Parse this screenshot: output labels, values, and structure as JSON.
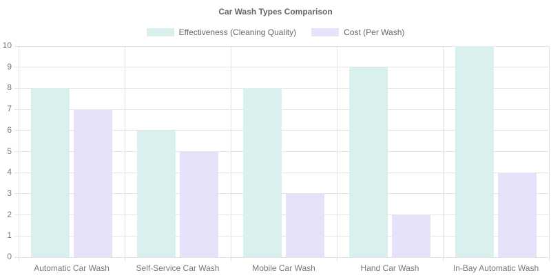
{
  "chart_data": {
    "type": "bar",
    "title": "Car Wash Types Comparison",
    "categories": [
      "Automatic Car Wash",
      "Self-Service Car Wash",
      "Mobile Car Wash",
      "Hand Car Wash",
      "In-Bay Automatic Wash"
    ],
    "series": [
      {
        "name": "Effectiveness (Cleaning Quality)",
        "color": "#d9f0ef",
        "values": [
          8,
          6,
          8,
          9,
          10
        ]
      },
      {
        "name": "Cost (Per Wash)",
        "color": "#e8e1fa",
        "values": [
          7,
          5,
          3,
          2,
          4
        ]
      }
    ],
    "ylim": [
      0,
      10
    ],
    "ytick_step": 1,
    "ytick_labels": [
      "0",
      "1",
      "2",
      "3",
      "4",
      "5",
      "6",
      "7",
      "8",
      "9",
      "10"
    ],
    "grid": true,
    "legend_position": "top",
    "xlabel": "",
    "ylabel": ""
  },
  "colors": {
    "title_text": "#666666",
    "legend_text": "#666666",
    "tick_text": "#777777",
    "gridline": "#e2e2e2",
    "background": "#ffffff"
  }
}
